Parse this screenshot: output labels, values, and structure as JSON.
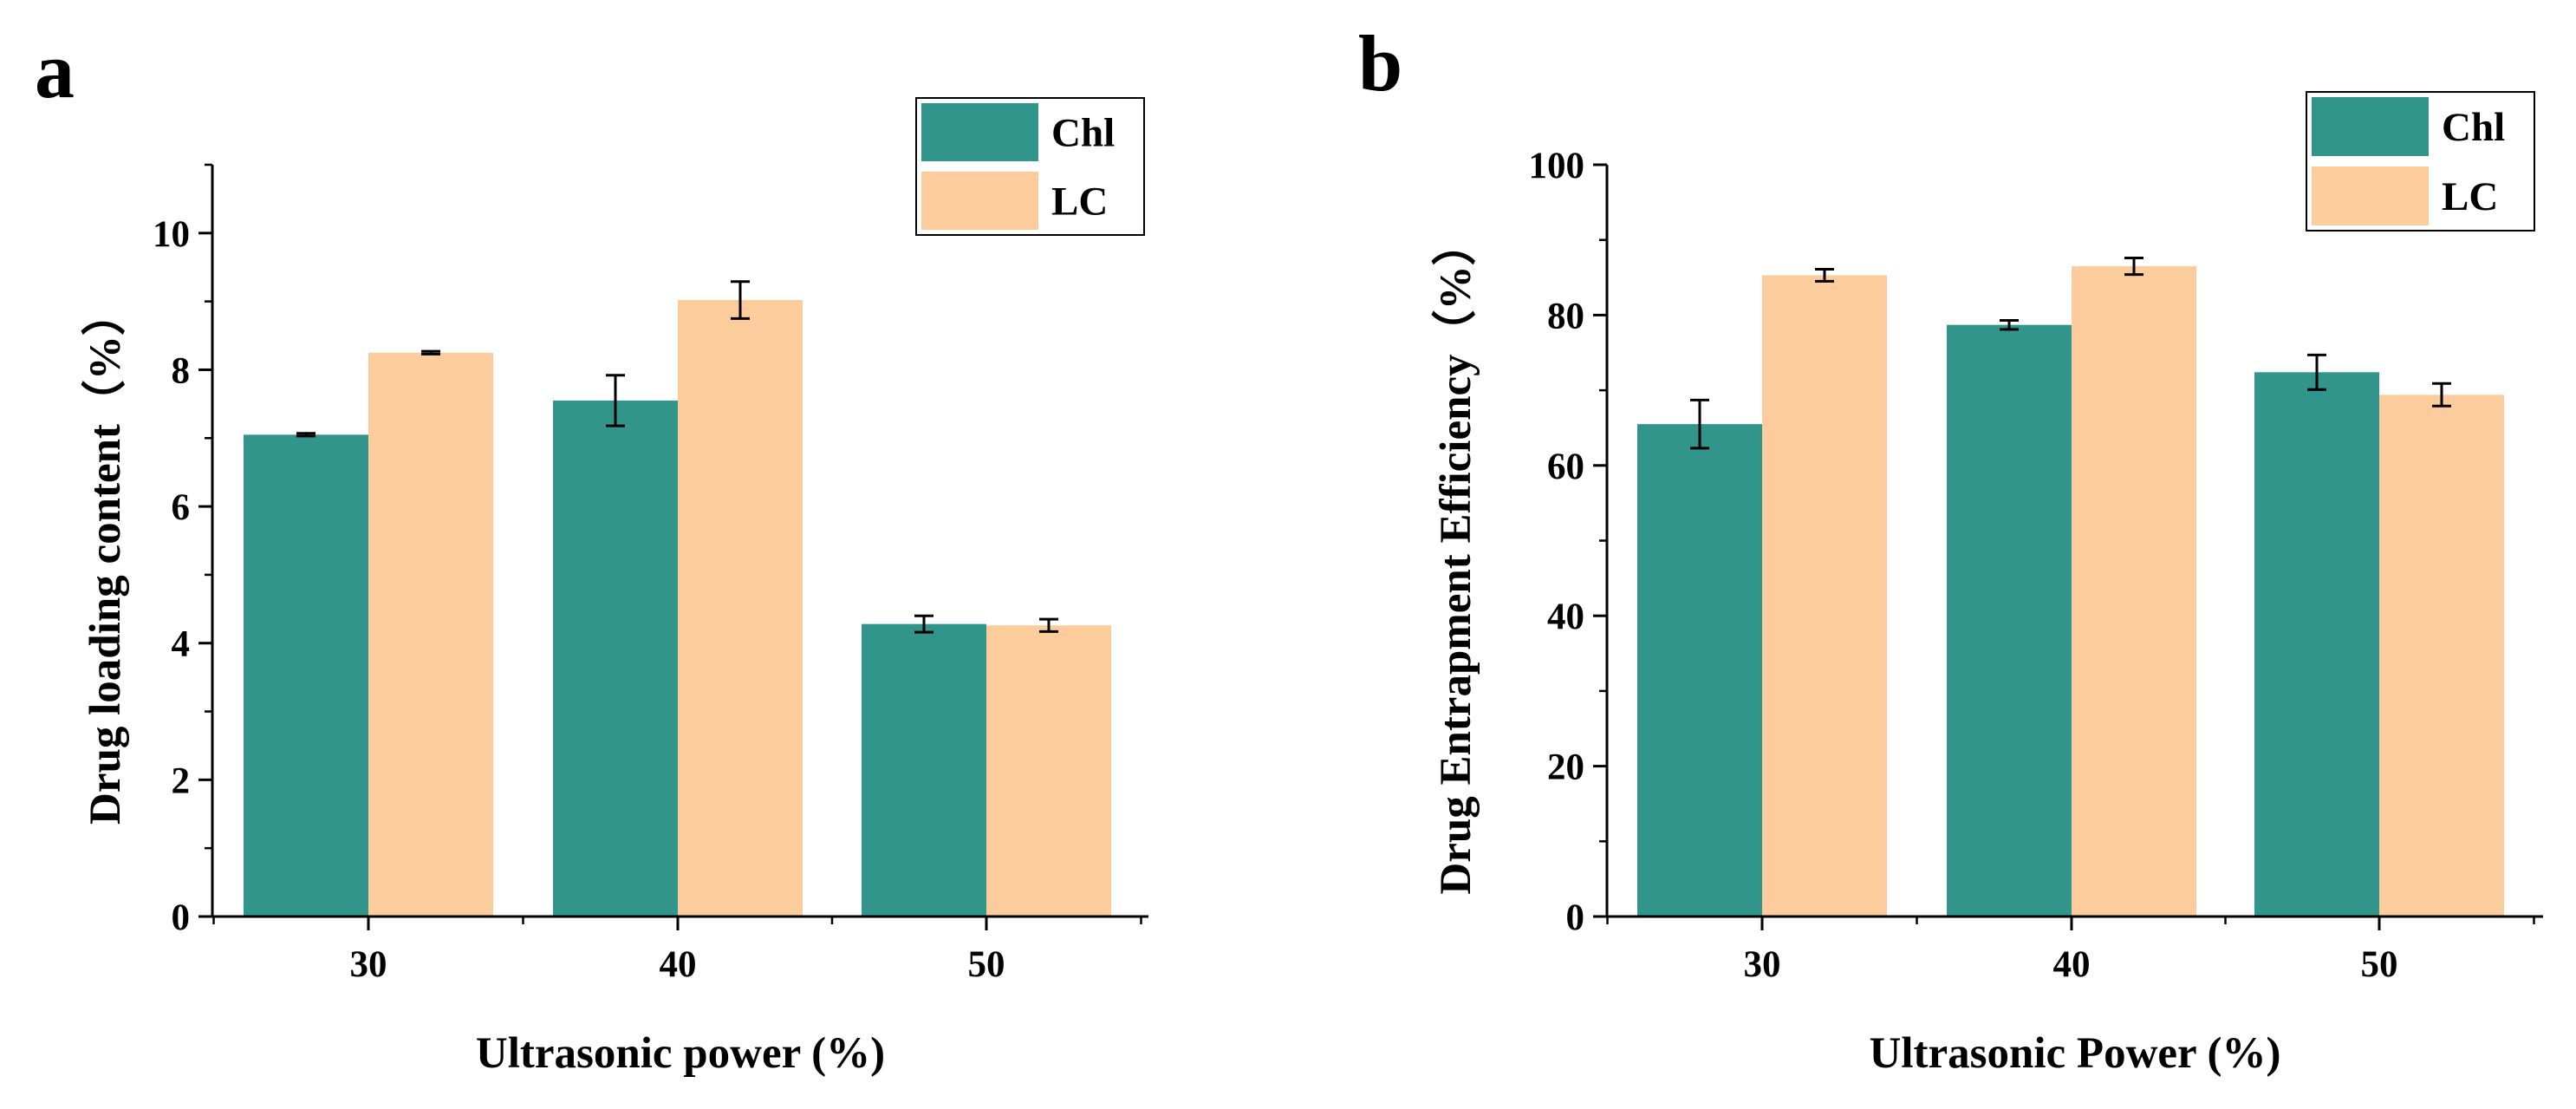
{
  "colors": {
    "chl": "#32958c",
    "lc": "#fccc9d"
  },
  "chart_data": [
    {
      "type": "bar",
      "panel_label": "a",
      "title": "",
      "categories": [
        "30",
        "40",
        "50"
      ],
      "series": [
        {
          "name": "Chl",
          "values": [
            7.05,
            7.55,
            4.28
          ],
          "errors": [
            0.02,
            0.37,
            0.12
          ]
        },
        {
          "name": "LC",
          "values": [
            8.25,
            9.02,
            4.26
          ],
          "errors": [
            0.02,
            0.27,
            0.09
          ]
        }
      ],
      "xlabel": "Ultrasonic power (%)",
      "ylabel": "Drug loading content（%）",
      "ylim": [
        0,
        11
      ],
      "y_ticks": [
        0,
        2,
        4,
        6,
        8,
        10
      ],
      "y_minor_step": 1,
      "y_tick_labels": [
        "0",
        "2",
        "4",
        "6",
        "8",
        "10"
      ],
      "grid": false,
      "legend_position": "top-right"
    },
    {
      "type": "bar",
      "panel_label": "b",
      "title": "",
      "categories": [
        "30",
        "40",
        "50"
      ],
      "series": [
        {
          "name": "Chl",
          "values": [
            65.5,
            78.7,
            72.4
          ],
          "errors": [
            3.2,
            0.6,
            2.3
          ]
        },
        {
          "name": "LC",
          "values": [
            85.3,
            86.5,
            69.4
          ],
          "errors": [
            0.8,
            1.1,
            1.5
          ]
        }
      ],
      "xlabel": "Ultrasonic Power (%)",
      "ylabel": "Drug Entrapment Efficiency（%）",
      "ylim": [
        0,
        100
      ],
      "y_ticks": [
        0,
        20,
        40,
        60,
        80,
        100
      ],
      "y_minor_step": 10,
      "y_tick_labels": [
        "0",
        "20",
        "40",
        "60",
        "80",
        "100"
      ],
      "grid": false,
      "legend_position": "top-right"
    }
  ]
}
